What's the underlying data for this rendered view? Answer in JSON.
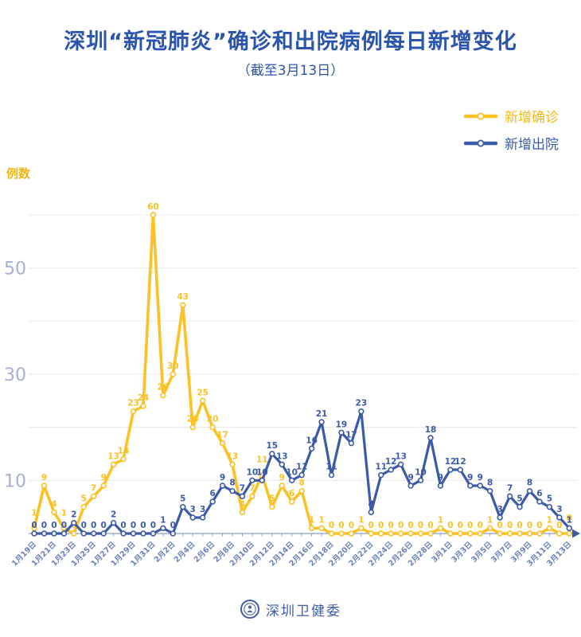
{
  "header": {
    "title": "深圳“新冠肺炎”确诊和出院病例每日新增变化",
    "subtitle": "（截至3月13日）"
  },
  "footer": {
    "org": "深圳卫健委"
  },
  "chart_data": {
    "type": "line",
    "title": "深圳“新冠肺炎”确诊和出院病例每日新增变化",
    "subtitle": "（截至3月13日）",
    "ylabel": "例数",
    "xlabel": "",
    "x": [
      "1月19日",
      "1月20日",
      "1月21日",
      "1月22日",
      "1月23日",
      "1月24日",
      "1月25日",
      "1月26日",
      "1月27日",
      "1月28日",
      "1月29日",
      "1月30日",
      "1月31日",
      "2月1日",
      "2月2日",
      "2月3日",
      "2月4日",
      "2月5日",
      "2月6日",
      "2月7日",
      "2月8日",
      "2月9日",
      "2月10日",
      "2月11日",
      "2月12日",
      "2月13日",
      "2月14日",
      "2月15日",
      "2月16日",
      "2月17日",
      "2月18日",
      "2月19日",
      "2月20日",
      "2月21日",
      "2月22日",
      "2月23日",
      "2月24日",
      "2月25日",
      "2月26日",
      "2月27日",
      "2月28日",
      "2月29日",
      "3月1日",
      "3月2日",
      "3月3日",
      "3月4日",
      "3月5日",
      "3月6日",
      "3月7日",
      "3月8日",
      "3月9日",
      "3月10日",
      "3月11日",
      "3月12日",
      "3月13日"
    ],
    "series": [
      {
        "name": "新增确诊",
        "color": "#FBC125",
        "values": [
          1,
          9,
          4,
          1,
          0,
          5,
          7,
          9,
          13,
          14,
          23,
          24,
          60,
          26,
          30,
          43,
          20,
          25,
          20,
          17,
          13,
          4,
          7,
          11,
          5,
          9,
          6,
          8,
          1,
          1,
          0,
          0,
          0,
          1,
          0,
          0,
          0,
          0,
          0,
          0,
          0,
          1,
          0,
          0,
          0,
          0,
          1,
          0,
          0,
          0,
          0,
          0,
          1,
          0,
          0
        ]
      },
      {
        "name": "新增出院",
        "color": "#3B5AA8",
        "values": [
          0,
          0,
          0,
          0,
          2,
          0,
          0,
          0,
          2,
          0,
          0,
          0,
          0,
          1,
          0,
          5,
          3,
          3,
          6,
          9,
          8,
          7,
          10,
          10,
          15,
          13,
          10,
          11,
          16,
          21,
          11,
          19,
          17,
          23,
          4,
          11,
          12,
          13,
          9,
          10,
          18,
          9,
          12,
          12,
          9,
          9,
          8,
          3,
          7,
          5,
          8,
          6,
          5,
          3,
          1
        ]
      }
    ],
    "ylim": [
      0,
      60
    ],
    "grid": "horizontal every 10, light gray",
    "grid_step": 10,
    "ytick_labels": [
      10,
      30,
      50
    ],
    "xlabel_every": 2,
    "legend_position": "top-right",
    "colors": {
      "axis": "#8D9CC9",
      "xtick_label": "#6B7FBC",
      "ytick_label": "#A6B0D0",
      "gridline": "#ECECEC"
    }
  }
}
